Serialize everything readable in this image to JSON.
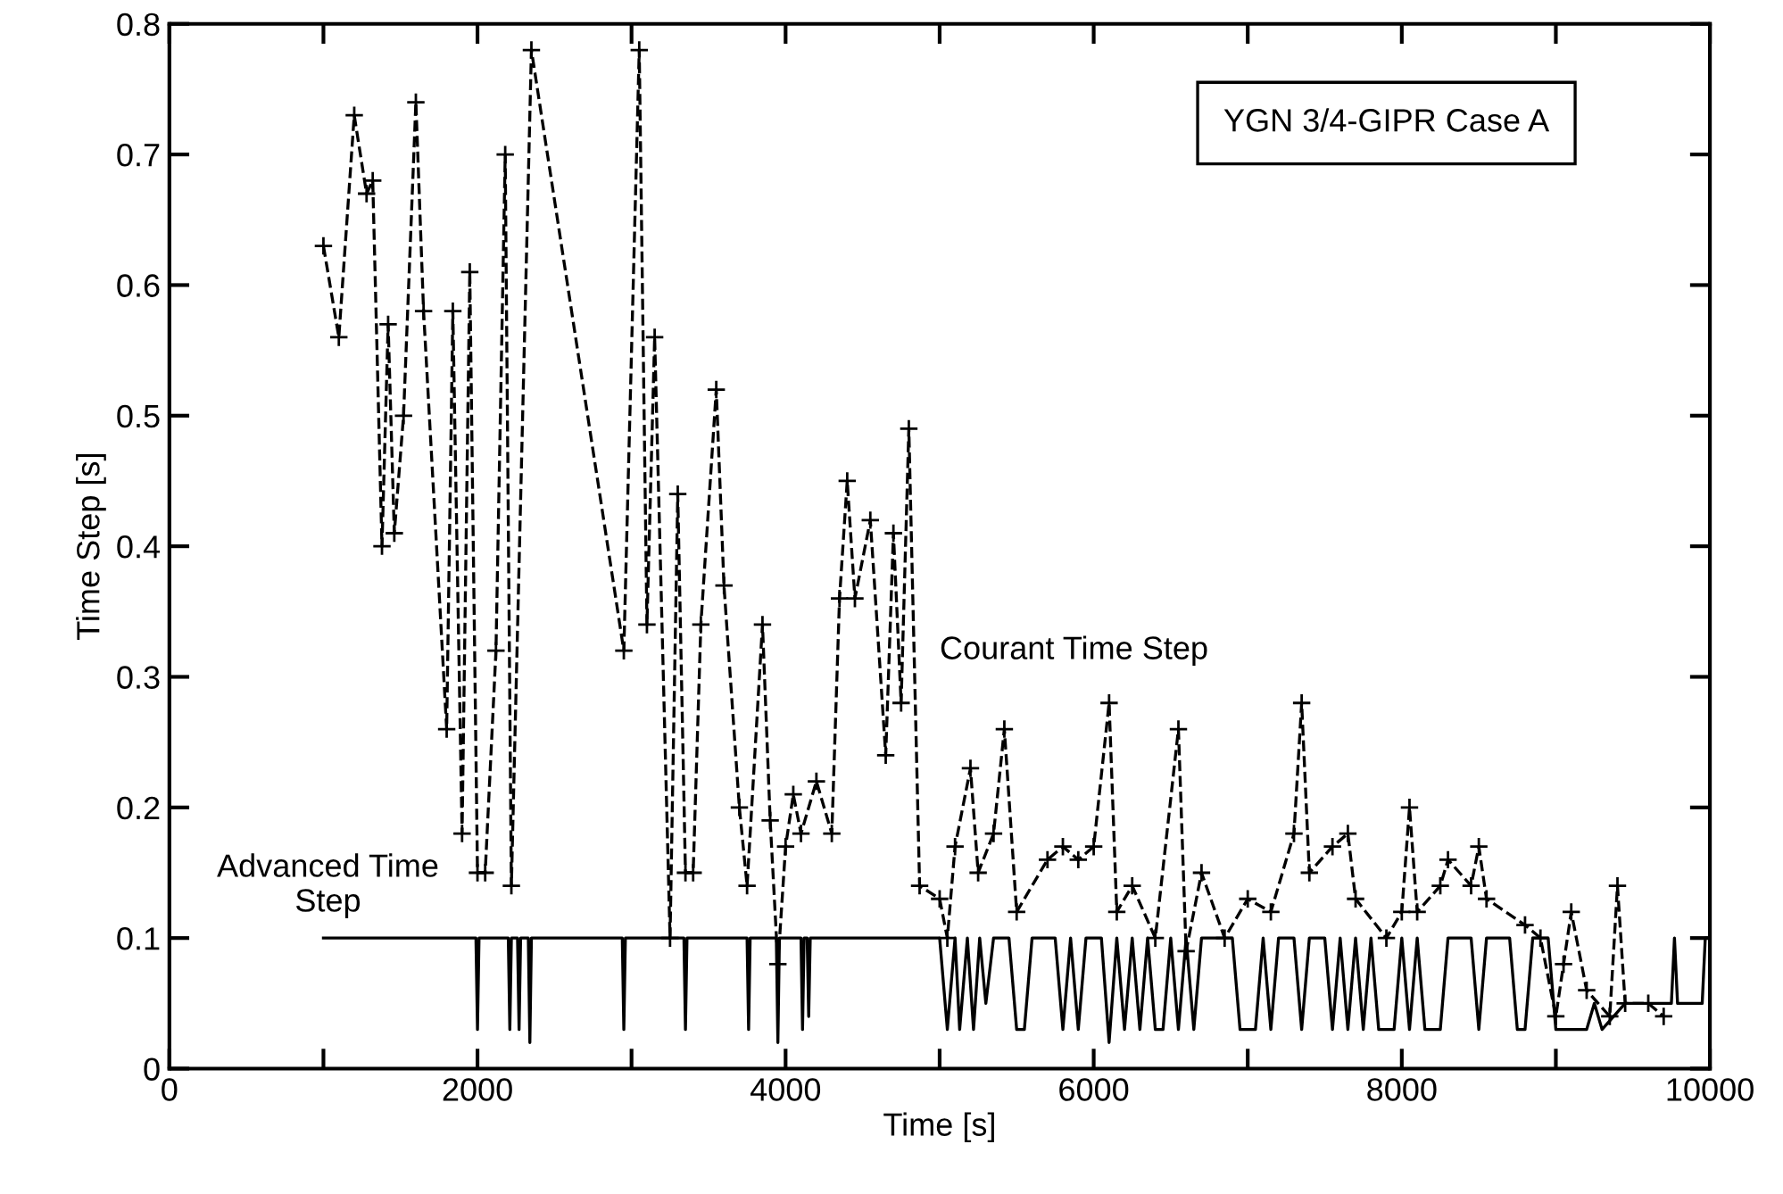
{
  "chart_data": {
    "type": "line",
    "xlabel": "Time [s]",
    "ylabel": "Time Step [s]",
    "xlim": [
      0,
      10000
    ],
    "ylim": [
      0,
      0.8
    ],
    "xticks": [
      0,
      {
        "value": 1000,
        "label": null
      },
      2000,
      {
        "value": 3000,
        "label": null
      },
      4000,
      {
        "value": 5000,
        "label": null
      },
      6000,
      {
        "value": 7000,
        "label": null
      },
      8000,
      {
        "value": 9000,
        "label": null
      },
      10000
    ],
    "yticks": [
      0,
      0.1,
      0.2,
      0.3,
      0.4,
      0.5,
      0.6,
      0.7,
      0.8
    ],
    "grid": false,
    "legend": false,
    "annotations": [
      "YGN 3/4-GIPR Case A"
    ],
    "series": [
      {
        "name": "Courant Time Step",
        "color": "#000000",
        "line_style": "dashed",
        "marker": "cross",
        "x": [
          1000,
          1100,
          1200,
          1280,
          1320,
          1380,
          1420,
          1460,
          1520,
          1600,
          1650,
          1800,
          1840,
          1900,
          1950,
          2000,
          2050,
          2120,
          2180,
          2220,
          2350,
          2950,
          3050,
          3100,
          3150,
          3250,
          3300,
          3350,
          3400,
          3450,
          3550,
          3600,
          3700,
          3750,
          3850,
          3900,
          3950,
          4000,
          4050,
          4100,
          4200,
          4300,
          4350,
          4400,
          4450,
          4550,
          4650,
          4700,
          4750,
          4800,
          4870,
          5000,
          5050,
          5100,
          5200,
          5250,
          5350,
          5420,
          5500,
          5700,
          5800,
          5900,
          6000,
          6100,
          6150,
          6250,
          6400,
          6550,
          6600,
          6700,
          6850,
          7000,
          7150,
          7300,
          7350,
          7400,
          7550,
          7650,
          7700,
          7900,
          8000,
          8050,
          8100,
          8250,
          8300,
          8450,
          8500,
          8550,
          8800,
          8900,
          9000,
          9050,
          9100,
          9200,
          9350,
          9400,
          9450,
          9600,
          9700
        ],
        "values": [
          0.63,
          0.56,
          0.73,
          0.67,
          0.68,
          0.4,
          0.57,
          0.41,
          0.5,
          0.74,
          0.58,
          0.26,
          0.58,
          0.18,
          0.61,
          0.15,
          0.15,
          0.32,
          0.7,
          0.14,
          0.78,
          0.32,
          0.78,
          0.34,
          0.56,
          0.1,
          0.44,
          0.15,
          0.15,
          0.34,
          0.52,
          0.37,
          0.2,
          0.14,
          0.34,
          0.19,
          0.08,
          0.17,
          0.21,
          0.18,
          0.22,
          0.18,
          0.36,
          0.45,
          0.36,
          0.42,
          0.24,
          0.41,
          0.28,
          0.49,
          0.14,
          0.13,
          0.1,
          0.17,
          0.23,
          0.15,
          0.18,
          0.26,
          0.12,
          0.16,
          0.17,
          0.16,
          0.17,
          0.28,
          0.12,
          0.14,
          0.1,
          0.26,
          0.09,
          0.15,
          0.1,
          0.13,
          0.12,
          0.18,
          0.28,
          0.15,
          0.17,
          0.18,
          0.13,
          0.1,
          0.12,
          0.2,
          0.12,
          0.14,
          0.16,
          0.14,
          0.17,
          0.13,
          0.11,
          0.1,
          0.04,
          0.08,
          0.12,
          0.06,
          0.04,
          0.14,
          0.05,
          0.05,
          0.04
        ]
      },
      {
        "name": "Advanced Time\nStep",
        "color": "#000000",
        "line_style": "solid",
        "marker": "none",
        "x": [
          1000,
          1990,
          2000,
          2010,
          2200,
          2210,
          2220,
          2260,
          2270,
          2280,
          2330,
          2340,
          2350,
          2940,
          2950,
          2960,
          3340,
          3350,
          3360,
          3750,
          3760,
          3770,
          3940,
          3950,
          3960,
          4100,
          4110,
          4120,
          4140,
          4150,
          4160,
          5000,
          5050,
          5100,
          5130,
          5180,
          5220,
          5260,
          5300,
          5350,
          5450,
          5500,
          5550,
          5600,
          5750,
          5800,
          5850,
          5900,
          5950,
          6050,
          6100,
          6150,
          6200,
          6250,
          6300,
          6350,
          6400,
          6450,
          6500,
          6550,
          6600,
          6650,
          6700,
          6900,
          6950,
          7050,
          7100,
          7150,
          7200,
          7300,
          7350,
          7400,
          7500,
          7550,
          7600,
          7650,
          7700,
          7750,
          7800,
          7850,
          7950,
          8000,
          8050,
          8100,
          8150,
          8250,
          8300,
          8450,
          8500,
          8550,
          8700,
          8750,
          8800,
          8850,
          8950,
          9000,
          9200,
          9250,
          9300,
          9450,
          9500,
          9750,
          9770,
          9790,
          9950,
          9970,
          10000
        ],
        "values": [
          0.1,
          0.1,
          0.03,
          0.1,
          0.1,
          0.03,
          0.1,
          0.1,
          0.03,
          0.1,
          0.1,
          0.02,
          0.1,
          0.1,
          0.03,
          0.1,
          0.1,
          0.03,
          0.1,
          0.1,
          0.03,
          0.1,
          0.1,
          0.02,
          0.1,
          0.1,
          0.03,
          0.1,
          0.1,
          0.04,
          0.1,
          0.1,
          0.03,
          0.1,
          0.03,
          0.1,
          0.03,
          0.1,
          0.05,
          0.1,
          0.1,
          0.03,
          0.03,
          0.1,
          0.1,
          0.03,
          0.1,
          0.03,
          0.1,
          0.1,
          0.02,
          0.1,
          0.03,
          0.1,
          0.03,
          0.1,
          0.03,
          0.03,
          0.1,
          0.03,
          0.1,
          0.03,
          0.1,
          0.1,
          0.03,
          0.03,
          0.1,
          0.03,
          0.1,
          0.1,
          0.03,
          0.1,
          0.1,
          0.03,
          0.1,
          0.03,
          0.1,
          0.03,
          0.1,
          0.03,
          0.03,
          0.1,
          0.03,
          0.1,
          0.03,
          0.03,
          0.1,
          0.1,
          0.03,
          0.1,
          0.1,
          0.03,
          0.03,
          0.1,
          0.1,
          0.03,
          0.03,
          0.05,
          0.03,
          0.05,
          0.05,
          0.05,
          0.1,
          0.05,
          0.05,
          0.1,
          0.1
        ]
      }
    ]
  }
}
